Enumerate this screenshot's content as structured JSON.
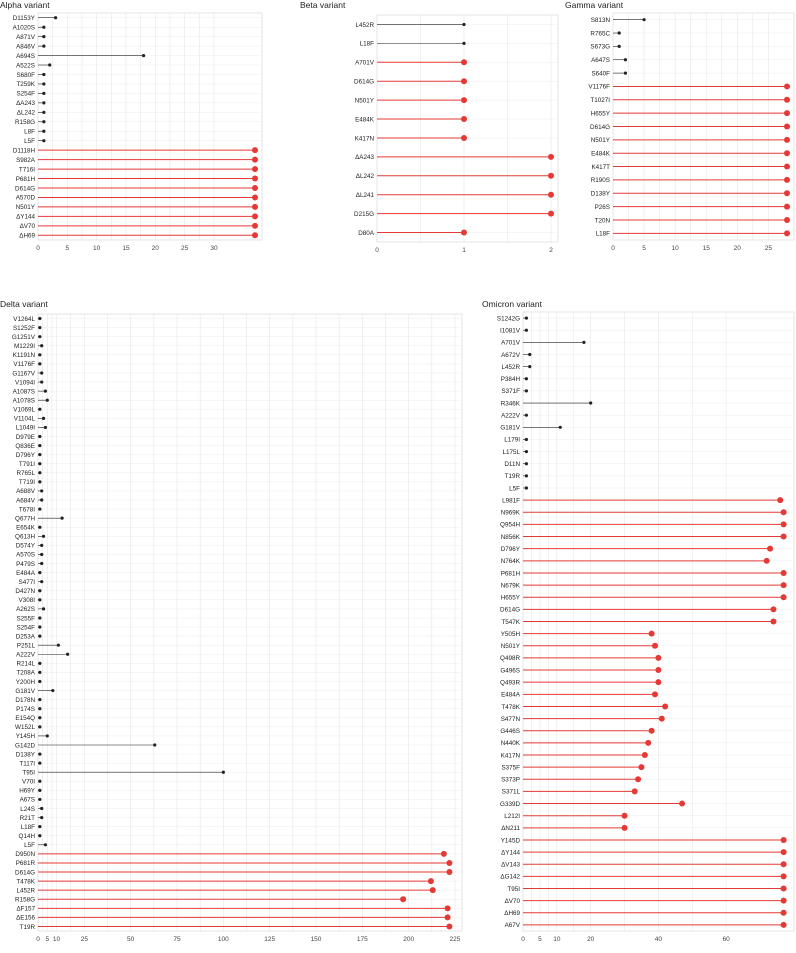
{
  "chart_data": [
    {
      "type": "lollipop",
      "title": "Alpha variant",
      "xlim": [
        0,
        37
      ],
      "xticks": [
        0,
        5,
        10,
        15,
        20,
        25,
        30
      ],
      "grid": true,
      "highlight_color": "#e53935",
      "base_color": "#222222",
      "categories": [
        "D1153Y",
        "A1020S",
        "A871V",
        "A846V",
        "A694S",
        "A522S",
        "S680F",
        "T259K",
        "S254F",
        "ΔA243",
        "ΔL242",
        "R158G",
        "L8F",
        "L5F",
        "D1118H",
        "S982A",
        "T716I",
        "P681H",
        "D614G",
        "A570D",
        "N501Y",
        "ΔY144",
        "ΔV70",
        "ΔH69"
      ],
      "values": [
        3,
        1,
        1,
        1,
        18,
        2,
        1,
        1,
        1,
        1,
        1,
        1,
        1,
        1,
        37,
        37,
        37,
        37,
        37,
        37,
        37,
        37,
        37,
        37
      ],
      "highlighted": [
        false,
        false,
        false,
        false,
        false,
        false,
        false,
        false,
        false,
        false,
        false,
        false,
        false,
        false,
        true,
        true,
        true,
        true,
        true,
        true,
        true,
        true,
        true,
        true
      ]
    },
    {
      "type": "lollipop",
      "title": "Beta variant",
      "xlim": [
        0,
        2
      ],
      "xticks": [
        0,
        1,
        2
      ],
      "grid": true,
      "highlight_color": "#e53935",
      "base_color": "#222222",
      "categories": [
        "L452R",
        "L18F",
        "A701V",
        "D614G",
        "N501Y",
        "E484K",
        "K417N",
        "ΔA243",
        "ΔL242",
        "ΔL241",
        "D215G",
        "D80A"
      ],
      "values": [
        1,
        1,
        1,
        1,
        1,
        1,
        1,
        2,
        2,
        2,
        2,
        1
      ],
      "highlighted": [
        false,
        false,
        true,
        true,
        true,
        true,
        true,
        true,
        true,
        true,
        true,
        true
      ]
    },
    {
      "type": "lollipop",
      "title": "Gamma variant",
      "xlim": [
        0,
        28
      ],
      "xticks": [
        0,
        5,
        10,
        15,
        20,
        25
      ],
      "grid": true,
      "highlight_color": "#e53935",
      "base_color": "#222222",
      "categories": [
        "S813N",
        "R765C",
        "S673G",
        "A647S",
        "S640F",
        "V1176F",
        "T1027I",
        "H655Y",
        "D614G",
        "N501Y",
        "E484K",
        "K417T",
        "R190S",
        "D138Y",
        "P26S",
        "T20N",
        "L18F"
      ],
      "values": [
        5,
        1,
        1,
        2,
        2,
        28,
        28,
        28,
        28,
        28,
        28,
        28,
        28,
        28,
        28,
        28,
        28
      ],
      "highlighted": [
        false,
        false,
        false,
        false,
        false,
        true,
        true,
        true,
        true,
        true,
        true,
        true,
        true,
        true,
        true,
        true,
        true
      ]
    },
    {
      "type": "lollipop",
      "title": "Delta variant",
      "xlim": [
        0,
        225
      ],
      "xticks": [
        0,
        5,
        10,
        25,
        50,
        75,
        100,
        125,
        150,
        175,
        200,
        225
      ],
      "grid": true,
      "highlight_color": "#e53935",
      "base_color": "#222222",
      "categories": [
        "V1264L",
        "S1252F",
        "G1251V",
        "M1229I",
        "K1191N",
        "V1176F",
        "G1167V",
        "V1094I",
        "A1087S",
        "A1078S",
        "V1069L",
        "V1104L",
        "L1049I",
        "D979E",
        "Q836E",
        "D796Y",
        "T791I",
        "R765L",
        "T719I",
        "A688V",
        "A684V",
        "T678I",
        "Q677H",
        "E654K",
        "Q613H",
        "D574Y",
        "A570S",
        "P479S",
        "E484A",
        "S477I",
        "D427N",
        "V308I",
        "A262S",
        "S255F",
        "S254F",
        "D253A",
        "P251L",
        "A222V",
        "R214L",
        "T208A",
        "Y200H",
        "G181V",
        "D178N",
        "P174S",
        "E154Q",
        "W152L",
        "Y145H",
        "G142D",
        "D138Y",
        "T117I",
        "T95I",
        "V70I",
        "H69Y",
        "A67S",
        "L24S",
        "R21T",
        "L18F",
        "Q14H",
        "L5F",
        "D950N",
        "P681R",
        "D614G",
        "T478K",
        "L452R",
        "R158G",
        "ΔF157",
        "ΔE156",
        "T19R"
      ],
      "values": [
        1,
        1,
        1,
        2,
        1,
        1,
        2,
        2,
        4,
        5,
        1,
        3,
        4,
        1,
        1,
        1,
        1,
        1,
        1,
        2,
        2,
        1,
        13,
        1,
        3,
        2,
        2,
        2,
        1,
        2,
        1,
        1,
        3,
        1,
        1,
        1,
        11,
        16,
        1,
        1,
        1,
        8,
        1,
        1,
        1,
        1,
        5,
        63,
        1,
        1,
        100,
        1,
        1,
        1,
        2,
        2,
        1,
        1,
        4,
        219,
        222,
        222,
        212,
        213,
        197,
        221,
        221,
        222
      ],
      "highlighted": [
        false,
        false,
        false,
        false,
        false,
        false,
        false,
        false,
        false,
        false,
        false,
        false,
        false,
        false,
        false,
        false,
        false,
        false,
        false,
        false,
        false,
        false,
        false,
        false,
        false,
        false,
        false,
        false,
        false,
        false,
        false,
        false,
        false,
        false,
        false,
        false,
        false,
        false,
        false,
        false,
        false,
        false,
        false,
        false,
        false,
        false,
        false,
        false,
        false,
        false,
        false,
        false,
        false,
        false,
        false,
        false,
        false,
        false,
        false,
        true,
        true,
        true,
        true,
        true,
        true,
        true,
        true,
        true
      ]
    },
    {
      "type": "lollipop",
      "title": "Omicron variant",
      "xlim": [
        0,
        78
      ],
      "xticks": [
        0,
        5,
        10,
        20,
        40,
        60
      ],
      "grid": true,
      "highlight_color": "#e53935",
      "base_color": "#222222",
      "categories": [
        "S1242G",
        "I1081V",
        "A701V",
        "A672V",
        "L452R",
        "P384H",
        "S371F",
        "R346K",
        "A222V",
        "G181V",
        "L179I",
        "L175L",
        "D11N",
        "T19R",
        "L5F",
        "L981F",
        "N969K",
        "Q954H",
        "N856K",
        "D796Y",
        "N764K",
        "P681H",
        "N679K",
        "H655Y",
        "D614G",
        "T547K",
        "Y505H",
        "N501Y",
        "Q498R",
        "G496S",
        "Q493R",
        "E484A",
        "T478K",
        "S477N",
        "G446S",
        "N440K",
        "K417N",
        "S375F",
        "S373P",
        "S371L",
        "G339D",
        "L212I",
        "ΔN211",
        "Y145D",
        "ΔY144",
        "ΔV143",
        "ΔG142",
        "T95I",
        "ΔV70",
        "ΔH69",
        "A67V"
      ],
      "values": [
        1,
        1,
        18,
        2,
        2,
        1,
        1,
        20,
        1,
        11,
        1,
        1,
        1,
        1,
        1,
        76,
        77,
        77,
        77,
        73,
        72,
        77,
        77,
        77,
        74,
        74,
        38,
        39,
        40,
        40,
        40,
        39,
        42,
        41,
        38,
        37,
        36,
        35,
        34,
        33,
        47,
        30,
        30,
        77,
        77,
        77,
        77,
        77,
        77,
        77,
        77
      ],
      "highlighted": [
        false,
        false,
        false,
        false,
        false,
        false,
        false,
        false,
        false,
        false,
        false,
        false,
        false,
        false,
        false,
        true,
        true,
        true,
        true,
        true,
        true,
        true,
        true,
        true,
        true,
        true,
        true,
        true,
        true,
        true,
        true,
        true,
        true,
        true,
        true,
        true,
        true,
        true,
        true,
        true,
        true,
        true,
        true,
        true,
        true,
        true,
        true,
        true,
        true,
        true,
        true
      ]
    }
  ]
}
